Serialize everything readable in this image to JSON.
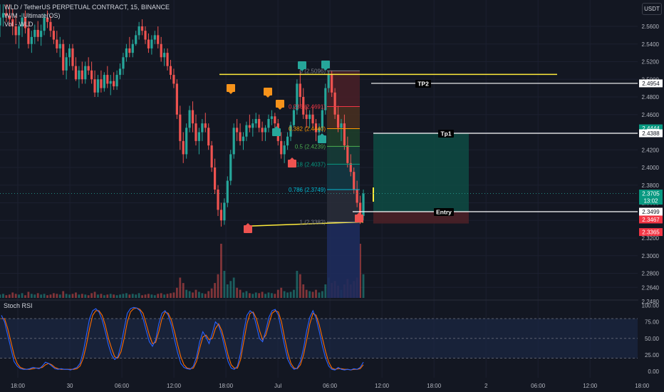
{
  "header": {
    "title": "WLD / TetherUS PERPETUAL CONTRACT, 15, BINANCE",
    "indicator1": "W/M - Ultimate(OS)",
    "indicator2": "Vol - WLD"
  },
  "currency_button": "USDT",
  "rsi_label": "Stoch RSI",
  "colors": {
    "background": "#131722",
    "up": "#26a69a",
    "down": "#ef5350",
    "yellow": "#ffeb3b",
    "rsi_k": "#2962ff",
    "rsi_d": "#ff6d00",
    "profit_zone": "#0e4b43",
    "loss_zone": "#4a2027"
  },
  "chart_data": {
    "type": "candlestick",
    "symbol": "WLD / TetherUS PERPETUAL CONTRACT",
    "timeframe": "15",
    "exchange": "BINANCE",
    "y_ticks": [
      "2.5600",
      "2.5400",
      "2.5200",
      "2.5000",
      "2.4800",
      "2.4600",
      "2.4400",
      "2.4200",
      "2.4000",
      "2.3800",
      "2.3600",
      "2.3400",
      "2.3200",
      "2.3000",
      "2.2800",
      "2.2640",
      "2.2480"
    ],
    "y_tick_values": [
      2.56,
      2.54,
      2.52,
      2.5,
      2.48,
      2.46,
      2.44,
      2.42,
      2.4,
      2.38,
      2.36,
      2.34,
      2.32,
      2.3,
      2.28,
      2.264,
      2.248
    ],
    "x_ticks": [
      "18:00",
      "30",
      "06:00",
      "12:00",
      "18:00",
      "Jul",
      "06:00",
      "12:00",
      "18:00",
      "2",
      "06:00",
      "12:00",
      "18:00"
    ],
    "x_tick_hours": [
      0,
      6,
      12,
      18,
      24,
      30,
      36,
      42,
      48,
      54,
      60,
      66,
      72
    ],
    "ylim": [
      2.248,
      2.572
    ],
    "price_badges": [
      {
        "text": "2.4954",
        "value": 2.4954,
        "style": "white"
      },
      {
        "text": "2.4444",
        "value": 2.4444,
        "style": "green"
      },
      {
        "text": "2.4388",
        "value": 2.4388,
        "style": "white"
      },
      {
        "text": "2.3705",
        "value": 2.3705,
        "style": "green"
      },
      {
        "text": "13:02",
        "value": 2.3705,
        "style": "green"
      },
      {
        "text": "2.3499",
        "value": 2.3499,
        "style": "white"
      },
      {
        "text": "2.3467",
        "value": 2.3467,
        "style": "red"
      },
      {
        "text": "2.3365",
        "value": 2.3365,
        "style": "red"
      }
    ],
    "targets": [
      {
        "label": "TP2",
        "value": 2.4954
      },
      {
        "label": "Tp1",
        "value": 2.4388
      },
      {
        "label": "Entry",
        "value": 2.3499
      }
    ],
    "fib_levels": [
      {
        "label": "0 (2.5096)",
        "value": 2.5096
      },
      {
        "label": "0.236 (2.4691)",
        "value": 2.4691
      },
      {
        "label": "0.382 (2.4440)",
        "value": 2.444
      },
      {
        "label": "0.5 (2.4239)",
        "value": 2.4239
      },
      {
        "label": "0.618 (2.4037)",
        "value": 2.4037
      },
      {
        "label": "0.786 (2.3749)",
        "value": 2.3749
      },
      {
        "label": "1 (2.3382)",
        "value": 2.3382
      }
    ],
    "horizontal_line": {
      "value": 2.5056
    },
    "trendline": {
      "from": 2.3335,
      "to": 2.3383
    },
    "last_price": 2.3705,
    "candles": [
      [
        2.561,
        2.585,
        2.548,
        2.57
      ],
      [
        2.57,
        2.585,
        2.56,
        2.575
      ],
      [
        2.575,
        2.585,
        2.565,
        2.572
      ],
      [
        2.572,
        2.585,
        2.56,
        2.568
      ],
      [
        2.568,
        2.58,
        2.55,
        2.56
      ],
      [
        2.56,
        2.572,
        2.54,
        2.55
      ],
      [
        2.55,
        2.562,
        2.535,
        2.56
      ],
      [
        2.56,
        2.575,
        2.548,
        2.57
      ],
      [
        2.57,
        2.578,
        2.552,
        2.558
      ],
      [
        2.558,
        2.566,
        2.535,
        2.54
      ],
      [
        2.54,
        2.555,
        2.53,
        2.548
      ],
      [
        2.548,
        2.562,
        2.54,
        2.556
      ],
      [
        2.556,
        2.566,
        2.543,
        2.548
      ],
      [
        2.548,
        2.562,
        2.538,
        2.555
      ],
      [
        2.555,
        2.575,
        2.55,
        2.57
      ],
      [
        2.57,
        2.578,
        2.558,
        2.565
      ],
      [
        2.565,
        2.572,
        2.548,
        2.555
      ],
      [
        2.555,
        2.56,
        2.54,
        2.545
      ],
      [
        2.545,
        2.555,
        2.53,
        2.535
      ],
      [
        2.535,
        2.548,
        2.525,
        2.54
      ],
      [
        2.54,
        2.545,
        2.505,
        2.51
      ],
      [
        2.51,
        2.53,
        2.5,
        2.525
      ],
      [
        2.525,
        2.54,
        2.515,
        2.535
      ],
      [
        2.535,
        2.54,
        2.51,
        2.515
      ],
      [
        2.515,
        2.525,
        2.498,
        2.5
      ],
      [
        2.5,
        2.515,
        2.49,
        2.51
      ],
      [
        2.51,
        2.52,
        2.495,
        2.5
      ],
      [
        2.5,
        2.52,
        2.495,
        2.515
      ],
      [
        2.515,
        2.525,
        2.505,
        2.51
      ],
      [
        2.51,
        2.52,
        2.495,
        2.5
      ],
      [
        2.5,
        2.51,
        2.48,
        2.485
      ],
      [
        2.485,
        2.505,
        2.48,
        2.5
      ],
      [
        2.5,
        2.51,
        2.485,
        2.49
      ],
      [
        2.49,
        2.508,
        2.486,
        2.505
      ],
      [
        2.505,
        2.515,
        2.49,
        2.495
      ],
      [
        2.495,
        2.505,
        2.482,
        2.498
      ],
      [
        2.498,
        2.508,
        2.488,
        2.492
      ],
      [
        2.492,
        2.51,
        2.488,
        2.505
      ],
      [
        2.505,
        2.518,
        2.5,
        2.512
      ],
      [
        2.512,
        2.53,
        2.505,
        2.525
      ],
      [
        2.525,
        2.54,
        2.52,
        2.535
      ],
      [
        2.535,
        2.548,
        2.525,
        2.53
      ],
      [
        2.53,
        2.545,
        2.525,
        2.54
      ],
      [
        2.54,
        2.555,
        2.538,
        2.55
      ],
      [
        2.55,
        2.565,
        2.545,
        2.56
      ],
      [
        2.56,
        2.568,
        2.55,
        2.555
      ],
      [
        2.555,
        2.56,
        2.54,
        2.545
      ],
      [
        2.545,
        2.552,
        2.53,
        2.535
      ],
      [
        2.535,
        2.55,
        2.528,
        2.545
      ],
      [
        2.545,
        2.555,
        2.54,
        2.55
      ],
      [
        2.55,
        2.56,
        2.535,
        2.54
      ],
      [
        2.54,
        2.548,
        2.52,
        2.525
      ],
      [
        2.525,
        2.535,
        2.515,
        2.53
      ],
      [
        2.53,
        2.535,
        2.51,
        2.515
      ],
      [
        2.515,
        2.522,
        2.5,
        2.505
      ],
      [
        2.505,
        2.512,
        2.49,
        2.495
      ],
      [
        2.495,
        2.5,
        2.455,
        2.46
      ],
      [
        2.46,
        2.47,
        2.42,
        2.43
      ],
      [
        2.43,
        2.44,
        2.405,
        2.415
      ],
      [
        2.415,
        2.45,
        2.41,
        2.445
      ],
      [
        2.445,
        2.47,
        2.44,
        2.465
      ],
      [
        2.465,
        2.475,
        2.44,
        2.45
      ],
      [
        2.45,
        2.46,
        2.425,
        2.43
      ],
      [
        2.43,
        2.445,
        2.415,
        2.44
      ],
      [
        2.44,
        2.455,
        2.43,
        2.45
      ],
      [
        2.45,
        2.462,
        2.44,
        2.445
      ],
      [
        2.445,
        2.45,
        2.42,
        2.425
      ],
      [
        2.425,
        2.43,
        2.395,
        2.4
      ],
      [
        2.4,
        2.41,
        2.37,
        2.375
      ],
      [
        2.375,
        2.38,
        2.345,
        2.352
      ],
      [
        2.352,
        2.36,
        2.333,
        2.34
      ],
      [
        2.34,
        2.365,
        2.335,
        2.36
      ],
      [
        2.36,
        2.39,
        2.355,
        2.385
      ],
      [
        2.385,
        2.42,
        2.38,
        2.415
      ],
      [
        2.415,
        2.45,
        2.41,
        2.445
      ],
      [
        2.445,
        2.455,
        2.43,
        2.44
      ],
      [
        2.44,
        2.45,
        2.425,
        2.43
      ],
      [
        2.43,
        2.44,
        2.42,
        2.435
      ],
      [
        2.435,
        2.452,
        2.43,
        2.448
      ],
      [
        2.448,
        2.46,
        2.44,
        2.445
      ],
      [
        2.445,
        2.455,
        2.435,
        2.45
      ],
      [
        2.45,
        2.462,
        2.445,
        2.455
      ],
      [
        2.455,
        2.46,
        2.44,
        2.445
      ],
      [
        2.445,
        2.452,
        2.43,
        2.44
      ],
      [
        2.44,
        2.448,
        2.43,
        2.445
      ],
      [
        2.445,
        2.46,
        2.44,
        2.455
      ],
      [
        2.455,
        2.465,
        2.448,
        2.458
      ],
      [
        2.458,
        2.462,
        2.445,
        2.45
      ],
      [
        2.45,
        2.455,
        2.425,
        2.43
      ],
      [
        2.43,
        2.44,
        2.41,
        2.415
      ],
      [
        2.415,
        2.43,
        2.405,
        2.425
      ],
      [
        2.425,
        2.44,
        2.42,
        2.435
      ],
      [
        2.435,
        2.452,
        2.43,
        2.448
      ],
      [
        2.448,
        2.47,
        2.445,
        2.465
      ],
      [
        2.465,
        2.5,
        2.46,
        2.495
      ],
      [
        2.495,
        2.51,
        2.47,
        2.48
      ],
      [
        2.48,
        2.49,
        2.455,
        2.46
      ],
      [
        2.46,
        2.47,
        2.445,
        2.455
      ],
      [
        2.455,
        2.465,
        2.445,
        2.46
      ],
      [
        2.46,
        2.468,
        2.445,
        2.45
      ],
      [
        2.45,
        2.455,
        2.43,
        2.44
      ],
      [
        2.44,
        2.45,
        2.435,
        2.445
      ],
      [
        2.445,
        2.47,
        2.44,
        2.465
      ],
      [
        2.465,
        2.495,
        2.46,
        2.49
      ],
      [
        2.49,
        2.51,
        2.485,
        2.505
      ],
      [
        2.505,
        2.51,
        2.48,
        2.485
      ],
      [
        2.485,
        2.49,
        2.455,
        2.46
      ],
      [
        2.46,
        2.47,
        2.44,
        2.445
      ],
      [
        2.445,
        2.455,
        2.43,
        2.45
      ],
      [
        2.45,
        2.46,
        2.42,
        2.425
      ],
      [
        2.425,
        2.435,
        2.4,
        2.405
      ],
      [
        2.405,
        2.415,
        2.39,
        2.395
      ],
      [
        2.395,
        2.4,
        2.37,
        2.375
      ],
      [
        2.375,
        2.385,
        2.355,
        2.36
      ],
      [
        2.36,
        2.368,
        2.336,
        2.345
      ],
      [
        2.345,
        2.375,
        2.34,
        2.3705
      ]
    ],
    "volume": [
      0.05,
      0.06,
      0.04,
      0.05,
      0.08,
      0.06,
      0.05,
      0.07,
      0.04,
      0.09,
      0.06,
      0.05,
      0.07,
      0.05,
      0.06,
      0.04,
      0.05,
      0.07,
      0.06,
      0.05,
      0.1,
      0.06,
      0.05,
      0.06,
      0.08,
      0.05,
      0.06,
      0.05,
      0.04,
      0.07,
      0.09,
      0.05,
      0.06,
      0.04,
      0.05,
      0.06,
      0.05,
      0.04,
      0.05,
      0.06,
      0.07,
      0.05,
      0.06,
      0.05,
      0.07,
      0.04,
      0.05,
      0.06,
      0.05,
      0.04,
      0.06,
      0.07,
      0.05,
      0.06,
      0.07,
      0.08,
      0.15,
      0.3,
      0.22,
      0.12,
      0.1,
      0.08,
      0.12,
      0.09,
      0.07,
      0.06,
      0.1,
      0.14,
      0.22,
      0.35,
      0.8,
      0.4,
      0.2,
      0.25,
      0.3,
      0.15,
      0.12,
      0.08,
      0.1,
      0.07,
      0.06,
      0.08,
      0.07,
      0.09,
      0.06,
      0.08,
      0.07,
      0.06,
      0.12,
      0.15,
      0.1,
      0.08,
      0.09,
      0.12,
      0.4,
      0.35,
      0.2,
      0.12,
      0.1,
      0.09,
      0.12,
      0.08,
      0.1,
      0.2,
      0.3,
      0.22,
      0.25,
      0.18,
      0.12,
      0.2,
      0.28,
      0.2,
      0.25,
      0.3,
      0.8,
      0.35
    ],
    "stoch_rsi": {
      "ylim": [
        0,
        100
      ],
      "y_ticks": [
        "100.00",
        "75.00",
        "50.00",
        "25.00",
        "0.00"
      ],
      "y_tick_values": [
        100,
        75,
        50,
        25,
        0
      ],
      "bands": [
        80,
        50,
        20
      ],
      "k": [
        85,
        75,
        55,
        35,
        15,
        8,
        4,
        3,
        3,
        4,
        6,
        5,
        4,
        8,
        14,
        12,
        8,
        4,
        3,
        4,
        3,
        3,
        2,
        4,
        6,
        12,
        30,
        55,
        80,
        92,
        95,
        90,
        78,
        60,
        40,
        25,
        18,
        22,
        40,
        65,
        88,
        95,
        97,
        96,
        92,
        80,
        62,
        45,
        38,
        48,
        72,
        88,
        92,
        85,
        70,
        48,
        28,
        12,
        6,
        4,
        3,
        8,
        22,
        45,
        60,
        52,
        42,
        58,
        75,
        70,
        55,
        35,
        15,
        5,
        3,
        8,
        28,
        60,
        85,
        92,
        88,
        70,
        50,
        45,
        62,
        82,
        92,
        94,
        85,
        62,
        38,
        18,
        8,
        3,
        5,
        15,
        35,
        62,
        82,
        92,
        80,
        60,
        38,
        20,
        8,
        3,
        2,
        6,
        3,
        2,
        3,
        2,
        4,
        3,
        6,
        14
      ],
      "d": [
        80,
        80,
        65,
        45,
        25,
        12,
        6,
        4,
        3,
        3,
        4,
        5,
        5,
        6,
        10,
        12,
        10,
        6,
        4,
        3,
        3,
        3,
        3,
        3,
        4,
        8,
        20,
        40,
        65,
        85,
        92,
        92,
        85,
        70,
        50,
        35,
        22,
        20,
        30,
        50,
        75,
        90,
        95,
        96,
        94,
        88,
        72,
        55,
        42,
        44,
        60,
        80,
        90,
        88,
        78,
        60,
        40,
        22,
        10,
        5,
        4,
        5,
        15,
        35,
        52,
        55,
        48,
        50,
        65,
        72,
        62,
        45,
        25,
        10,
        5,
        5,
        18,
        45,
        72,
        88,
        90,
        80,
        62,
        48,
        55,
        72,
        88,
        92,
        90,
        75,
        50,
        28,
        12,
        5,
        4,
        10,
        25,
        48,
        72,
        88,
        85,
        70,
        50,
        30,
        14,
        5,
        3,
        4,
        4,
        3,
        3,
        2,
        3,
        3,
        4,
        10
      ]
    }
  }
}
